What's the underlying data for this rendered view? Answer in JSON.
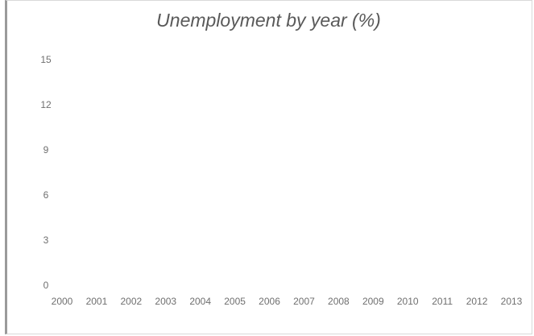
{
  "chart_data": {
    "type": "line",
    "title": "Unemployment by year (%)",
    "xlabel": "",
    "ylabel": "",
    "categories": [
      "2000",
      "2001",
      "2002",
      "2003",
      "2004",
      "2005",
      "2006",
      "2007",
      "2008",
      "2009",
      "2010",
      "2011",
      "2012",
      "2013"
    ],
    "y_ticks": [
      "0",
      "3",
      "6",
      "9",
      "12",
      "15"
    ],
    "ylim": [
      0,
      15
    ],
    "series": [],
    "grid": false,
    "legend": "none"
  },
  "colors": {
    "title": "#595959",
    "tick_label": "#6f6f6f",
    "frame_border": "#d9d9d9"
  }
}
